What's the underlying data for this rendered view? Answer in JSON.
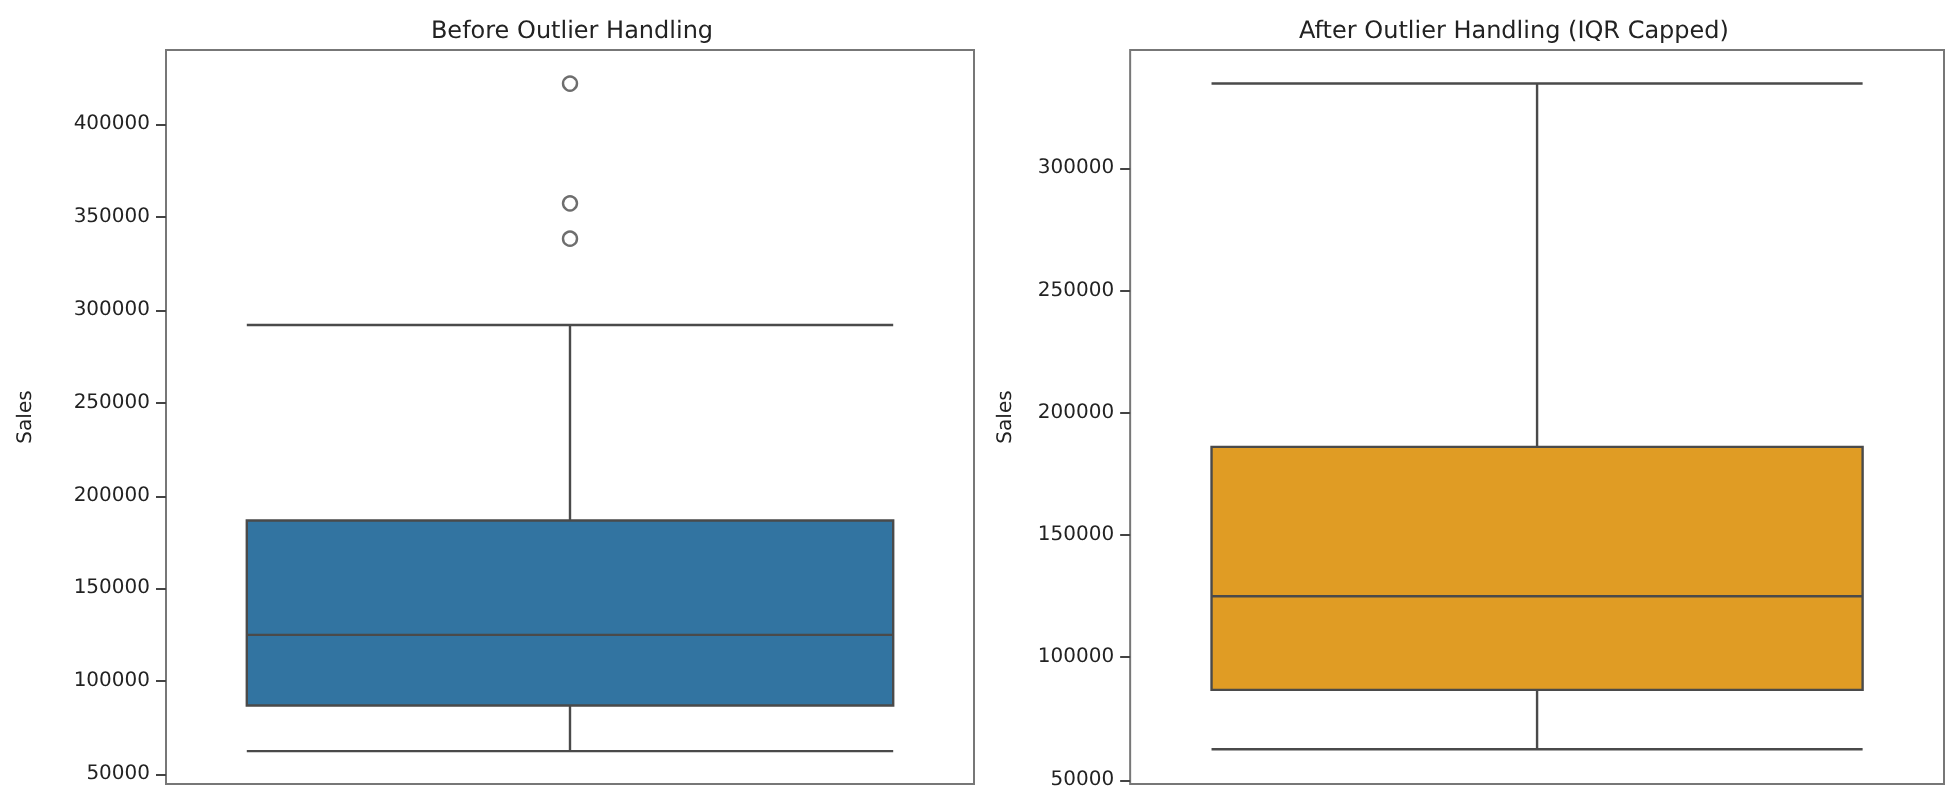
{
  "chart_data": [
    {
      "type": "box",
      "title": "Before Outlier Handling",
      "ylabel": "Sales",
      "categories": [
        null
      ],
      "series": [
        {
          "color": "#3274a1",
          "boxes": [
            {
              "low": 62400,
              "q1": 87000,
              "median": 125000,
              "q3": 186600,
              "high": 291900,
              "outliers": [
                338400,
                357400,
                421900
              ]
            }
          ]
        }
      ],
      "ylim": [
        44700,
        440000
      ],
      "yticks": [
        50000,
        100000,
        150000,
        200000,
        250000,
        300000,
        350000,
        400000
      ],
      "grid": false,
      "marker": "circle"
    },
    {
      "type": "box",
      "title": "After Outlier Handling (IQR Capped)",
      "ylabel": "Sales",
      "categories": [
        null
      ],
      "series": [
        {
          "color": "#e09c24",
          "boxes": [
            {
              "low": 62400,
              "q1": 86700,
              "median": 125000,
              "q3": 186100,
              "high": 334700
            }
          ]
        }
      ],
      "ylim": [
        48200,
        348400
      ],
      "yticks": [
        50000,
        100000,
        150000,
        200000,
        250000,
        300000
      ],
      "grid": false
    }
  ]
}
